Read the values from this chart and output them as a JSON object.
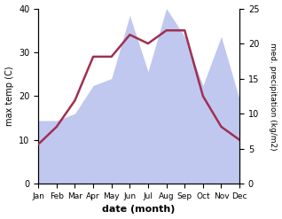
{
  "months": [
    "Jan",
    "Feb",
    "Mar",
    "Apr",
    "May",
    "Jun",
    "Jul",
    "Aug",
    "Sep",
    "Oct",
    "Nov",
    "Dec"
  ],
  "temp_max": [
    9,
    13,
    19,
    29,
    29,
    34,
    32,
    35,
    35,
    20,
    13,
    10
  ],
  "precip": [
    9,
    9,
    10,
    14,
    15,
    24,
    16,
    25,
    21,
    14,
    21,
    12
  ],
  "temp_color": "#a03050",
  "precip_fill_color": "#c0c8f0",
  "title": "",
  "xlabel": "date (month)",
  "ylabel_left": "max temp (C)",
  "ylabel_right": "med. precipitation (kg/m2)",
  "ylim_left": [
    0,
    40
  ],
  "ylim_right": [
    0,
    25
  ],
  "yticks_left": [
    0,
    10,
    20,
    30,
    40
  ],
  "yticks_right": [
    0,
    5,
    10,
    15,
    20,
    25
  ],
  "background_color": "#ffffff",
  "fig_width": 3.18,
  "fig_height": 2.47,
  "dpi": 100
}
